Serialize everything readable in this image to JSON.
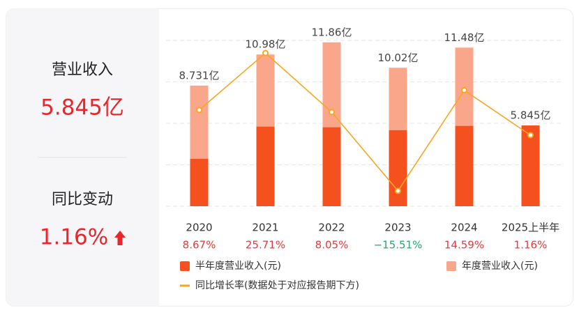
{
  "summary": {
    "revenue_label": "营业收入",
    "revenue_value": "5.845亿",
    "change_label": "同比变动",
    "change_value": "1.16%"
  },
  "chart_data": {
    "type": "bar",
    "categories": [
      "2020",
      "2021",
      "2022",
      "2023",
      "2024",
      "2025上半年"
    ],
    "ylim": [
      0,
      12
    ],
    "yticks": [
      0,
      3,
      6,
      9,
      12
    ],
    "y2lim": [
      -20.1,
      29.5
    ],
    "grid": true,
    "positive_color": "#e8383d",
    "negative_color": "#22a86a",
    "series": [
      {
        "name": "半年度营业收入(元)",
        "type": "bar",
        "color": "#f4511e",
        "values": [
          3.43,
          5.76,
          5.71,
          5.5,
          5.81,
          5.845
        ],
        "value_labels": [
          null,
          null,
          null,
          null,
          null,
          "5.845亿"
        ]
      },
      {
        "name": "年度营业收入(元)",
        "type": "bar",
        "color": "#f9a68a",
        "values": [
          8.731,
          10.98,
          11.86,
          10.02,
          11.48,
          null
        ],
        "value_labels": [
          "8.731亿",
          "10.98亿",
          "11.86亿",
          "10.02亿",
          "11.48亿",
          null
        ]
      },
      {
        "name": "同比增长率(数据处于对应报告期下方)",
        "type": "line",
        "axis": "y2",
        "color": "#f5a623",
        "values": [
          8.67,
          25.71,
          8.05,
          -15.51,
          14.59,
          1.16
        ],
        "value_labels": [
          "8.67%",
          "25.71%",
          "8.05%",
          "−15.51%",
          "14.59%",
          "1.16%"
        ]
      }
    ]
  }
}
